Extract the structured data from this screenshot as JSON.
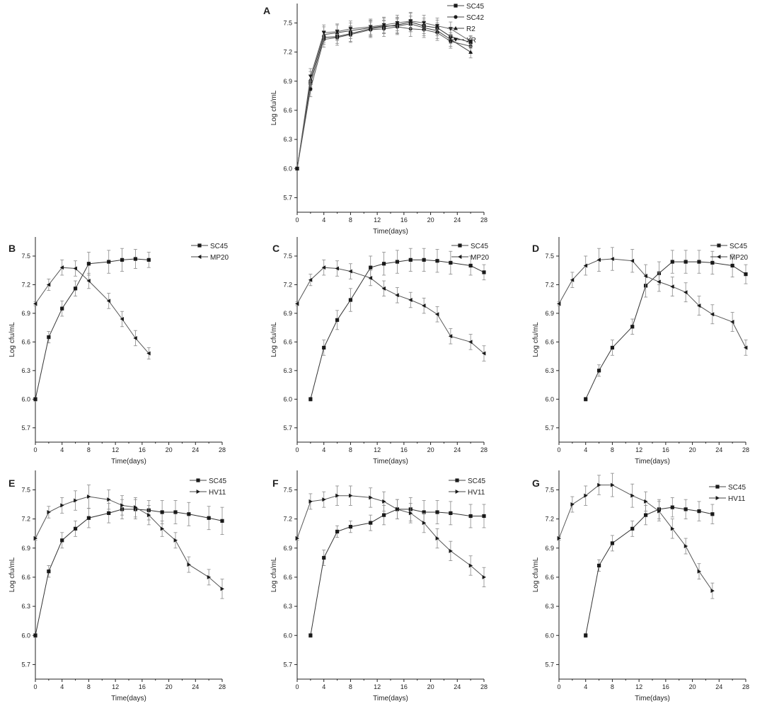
{
  "chart_data": [
    {
      "panel": "A",
      "type": "line",
      "xlabel": "Time(days)",
      "ylabel": "Log cfu/mL",
      "xlim": [
        0,
        28
      ],
      "ylim": [
        5.55,
        7.7
      ],
      "xticks": [
        0,
        4,
        8,
        12,
        16,
        20,
        24,
        28
      ],
      "yticks": [
        5.7,
        6.0,
        6.3,
        6.6,
        6.9,
        7.2,
        7.5
      ],
      "legend_position": "top-right",
      "series": [
        {
          "name": "SC45",
          "marker": "square",
          "x": [
            0,
            2,
            4,
            6,
            8,
            11,
            13,
            15,
            17,
            19,
            21,
            23,
            26
          ],
          "y": [
            6.0,
            6.88,
            7.35,
            7.36,
            7.39,
            7.44,
            7.46,
            7.48,
            7.51,
            7.47,
            7.45,
            7.36,
            7.3
          ],
          "err": [
            0.01,
            0.08,
            0.07,
            0.07,
            0.08,
            0.08,
            0.07,
            0.08,
            0.1,
            0.08,
            0.08,
            0.07,
            0.06
          ]
        },
        {
          "name": "SC42",
          "marker": "circle",
          "x": [
            0,
            2,
            4,
            6,
            8,
            11,
            13,
            15,
            17,
            19,
            21,
            23,
            26
          ],
          "y": [
            6.0,
            6.82,
            7.33,
            7.35,
            7.38,
            7.43,
            7.44,
            7.46,
            7.44,
            7.43,
            7.4,
            7.31,
            7.26
          ],
          "err": [
            0.01,
            0.08,
            0.08,
            0.08,
            0.08,
            0.08,
            0.08,
            0.08,
            0.08,
            0.08,
            0.08,
            0.07,
            0.06
          ]
        },
        {
          "name": "R2",
          "marker": "triangle-up",
          "x": [
            0,
            2,
            4,
            6,
            8,
            11,
            13,
            15,
            17,
            19,
            21,
            23,
            26
          ],
          "y": [
            6.0,
            6.92,
            7.38,
            7.4,
            7.42,
            7.45,
            7.47,
            7.47,
            7.49,
            7.45,
            7.42,
            7.33,
            7.2
          ],
          "err": [
            0.01,
            0.08,
            0.08,
            0.08,
            0.08,
            0.08,
            0.08,
            0.08,
            0.08,
            0.08,
            0.08,
            0.07,
            0.06
          ]
        },
        {
          "name": "XR",
          "marker": "triangle-down",
          "x": [
            0,
            2,
            4,
            6,
            8,
            11,
            13,
            15,
            17,
            19,
            21,
            23,
            26
          ],
          "y": [
            6.0,
            6.95,
            7.4,
            7.41,
            7.44,
            7.46,
            7.48,
            7.5,
            7.52,
            7.5,
            7.47,
            7.44,
            7.31
          ],
          "err": [
            0.01,
            0.08,
            0.08,
            0.08,
            0.08,
            0.08,
            0.08,
            0.08,
            0.08,
            0.08,
            0.08,
            0.07,
            0.06
          ]
        }
      ]
    },
    {
      "panel": "B",
      "type": "line",
      "xlabel": "Time(days)",
      "ylabel": "Log cfu/mL",
      "xlim": [
        0,
        28
      ],
      "ylim": [
        5.55,
        7.7
      ],
      "xticks": [
        0,
        4,
        8,
        12,
        16,
        20,
        24,
        28
      ],
      "yticks": [
        5.7,
        6.0,
        6.3,
        6.6,
        6.9,
        7.2,
        7.5
      ],
      "legend_position": "top-right",
      "series": [
        {
          "name": "SC45",
          "marker": "square",
          "x": [
            0,
            2,
            4,
            6,
            8,
            11,
            13,
            15,
            17
          ],
          "y": [
            6.0,
            6.65,
            6.95,
            7.16,
            7.42,
            7.44,
            7.46,
            7.47,
            7.46
          ],
          "err": [
            0.02,
            0.06,
            0.08,
            0.08,
            0.12,
            0.12,
            0.12,
            0.1,
            0.08
          ]
        },
        {
          "name": "MP20",
          "marker": "triangle-left",
          "x": [
            0,
            2,
            4,
            6,
            8,
            11,
            13,
            15,
            17
          ],
          "y": [
            7.0,
            7.2,
            7.38,
            7.37,
            7.24,
            7.03,
            6.84,
            6.64,
            6.48
          ],
          "err": [
            0.02,
            0.06,
            0.08,
            0.08,
            0.08,
            0.08,
            0.08,
            0.08,
            0.06
          ]
        }
      ]
    },
    {
      "panel": "C",
      "type": "line",
      "xlabel": "Time(days)",
      "ylabel": "Log cfu/mL",
      "xlim": [
        0,
        28
      ],
      "ylim": [
        5.55,
        7.7
      ],
      "xticks": [
        0,
        4,
        8,
        12,
        16,
        20,
        24,
        28
      ],
      "yticks": [
        5.7,
        6.0,
        6.3,
        6.6,
        6.9,
        7.2,
        7.5
      ],
      "legend_position": "top-right",
      "series": [
        {
          "name": "SC45",
          "marker": "square",
          "x": [
            2,
            4,
            6,
            8,
            11,
            13,
            15,
            17,
            19,
            21,
            23,
            26,
            28
          ],
          "y": [
            6.0,
            6.54,
            6.83,
            7.04,
            7.38,
            7.42,
            7.44,
            7.46,
            7.46,
            7.45,
            7.43,
            7.4,
            7.33
          ],
          "err": [
            0.02,
            0.08,
            0.1,
            0.12,
            0.12,
            0.12,
            0.12,
            0.12,
            0.12,
            0.12,
            0.12,
            0.1,
            0.08
          ]
        },
        {
          "name": "MP20",
          "marker": "triangle-left",
          "x": [
            0,
            2,
            4,
            6,
            8,
            11,
            13,
            15,
            17,
            19,
            21,
            23,
            26,
            28
          ],
          "y": [
            7.0,
            7.25,
            7.38,
            7.37,
            7.34,
            7.27,
            7.16,
            7.09,
            7.04,
            6.98,
            6.89,
            6.66,
            6.6,
            6.48
          ],
          "err": [
            0.02,
            0.06,
            0.08,
            0.08,
            0.08,
            0.08,
            0.08,
            0.08,
            0.08,
            0.08,
            0.08,
            0.08,
            0.08,
            0.08
          ]
        }
      ]
    },
    {
      "panel": "D",
      "type": "line",
      "xlabel": "Time(days)",
      "ylabel": "Log cfu/mL",
      "xlim": [
        0,
        28
      ],
      "ylim": [
        5.55,
        7.7
      ],
      "xticks": [
        0,
        4,
        8,
        12,
        16,
        20,
        24,
        28
      ],
      "yticks": [
        5.7,
        6.0,
        6.3,
        6.6,
        6.9,
        7.2,
        7.5
      ],
      "legend_position": "top-right",
      "series": [
        {
          "name": "SC45",
          "marker": "square",
          "x": [
            4,
            6,
            8,
            11,
            13,
            15,
            17,
            19,
            21,
            23,
            26,
            28
          ],
          "y": [
            6.0,
            6.3,
            6.54,
            6.76,
            7.19,
            7.32,
            7.44,
            7.44,
            7.44,
            7.43,
            7.4,
            7.31
          ],
          "err": [
            0.02,
            0.06,
            0.08,
            0.08,
            0.12,
            0.12,
            0.12,
            0.12,
            0.12,
            0.12,
            0.12,
            0.1
          ]
        },
        {
          "name": "MP20",
          "marker": "triangle-left",
          "x": [
            0,
            2,
            4,
            6,
            8,
            11,
            13,
            15,
            17,
            19,
            21,
            23,
            26,
            28
          ],
          "y": [
            7.0,
            7.25,
            7.4,
            7.46,
            7.47,
            7.45,
            7.29,
            7.23,
            7.18,
            7.12,
            6.98,
            6.89,
            6.81,
            6.54
          ],
          "err": [
            0.02,
            0.08,
            0.1,
            0.12,
            0.12,
            0.12,
            0.12,
            0.1,
            0.1,
            0.1,
            0.1,
            0.1,
            0.1,
            0.08
          ]
        }
      ]
    },
    {
      "panel": "E",
      "type": "line",
      "xlabel": "Time(days)",
      "ylabel": "Log cfu/mL",
      "xlim": [
        0,
        28
      ],
      "ylim": [
        5.55,
        7.7
      ],
      "xticks": [
        0,
        4,
        8,
        12,
        16,
        20,
        24,
        28
      ],
      "yticks": [
        5.7,
        6.0,
        6.3,
        6.6,
        6.9,
        7.2,
        7.5
      ],
      "legend_position": "top-right",
      "series": [
        {
          "name": "SC45",
          "marker": "square",
          "x": [
            0,
            2,
            4,
            6,
            8,
            11,
            13,
            15,
            17,
            19,
            21,
            23,
            26,
            28
          ],
          "y": [
            6.0,
            6.66,
            6.98,
            7.1,
            7.21,
            7.26,
            7.3,
            7.3,
            7.29,
            7.27,
            7.27,
            7.25,
            7.21,
            7.18
          ],
          "err": [
            0.02,
            0.06,
            0.08,
            0.08,
            0.1,
            0.1,
            0.1,
            0.1,
            0.1,
            0.12,
            0.12,
            0.12,
            0.12,
            0.14
          ]
        },
        {
          "name": "HV11",
          "marker": "triangle-right",
          "x": [
            0,
            2,
            4,
            6,
            8,
            11,
            13,
            15,
            17,
            19,
            21,
            23,
            26,
            28
          ],
          "y": [
            7.0,
            7.27,
            7.34,
            7.39,
            7.43,
            7.4,
            7.34,
            7.32,
            7.24,
            7.1,
            6.98,
            6.73,
            6.6,
            6.48
          ],
          "err": [
            0.02,
            0.06,
            0.08,
            0.1,
            0.12,
            0.1,
            0.1,
            0.1,
            0.1,
            0.08,
            0.08,
            0.08,
            0.08,
            0.1
          ]
        }
      ]
    },
    {
      "panel": "F",
      "type": "line",
      "xlabel": "Time(days)",
      "ylabel": "Log cfu/mL",
      "xlim": [
        0,
        28
      ],
      "ylim": [
        5.55,
        7.7
      ],
      "xticks": [
        0,
        4,
        8,
        12,
        16,
        20,
        24,
        28
      ],
      "yticks": [
        5.7,
        6.0,
        6.3,
        6.6,
        6.9,
        7.2,
        7.5
      ],
      "legend_position": "top-right",
      "series": [
        {
          "name": "SC45",
          "marker": "square",
          "x": [
            2,
            4,
            6,
            8,
            11,
            13,
            15,
            17,
            19,
            21,
            23,
            26,
            28
          ],
          "y": [
            6.0,
            6.8,
            7.07,
            7.12,
            7.16,
            7.24,
            7.3,
            7.3,
            7.27,
            7.27,
            7.26,
            7.23,
            7.23
          ],
          "err": [
            0.02,
            0.08,
            0.06,
            0.06,
            0.08,
            0.1,
            0.1,
            0.12,
            0.12,
            0.12,
            0.12,
            0.12,
            0.12
          ]
        },
        {
          "name": "HV11",
          "marker": "triangle-right",
          "x": [
            0,
            2,
            4,
            6,
            8,
            11,
            13,
            15,
            17,
            19,
            21,
            23,
            26,
            28
          ],
          "y": [
            7.0,
            7.38,
            7.4,
            7.44,
            7.44,
            7.42,
            7.38,
            7.3,
            7.26,
            7.16,
            7.0,
            6.87,
            6.72,
            6.6
          ],
          "err": [
            0.02,
            0.08,
            0.08,
            0.1,
            0.1,
            0.1,
            0.1,
            0.1,
            0.1,
            0.1,
            0.1,
            0.1,
            0.1,
            0.1
          ]
        }
      ]
    },
    {
      "panel": "G",
      "type": "line",
      "xlabel": "Time(days)",
      "ylabel": "Log cfu/mL",
      "xlim": [
        0,
        28
      ],
      "ylim": [
        5.55,
        7.7
      ],
      "xticks": [
        0,
        4,
        8,
        12,
        16,
        20,
        24,
        28
      ],
      "yticks": [
        5.7,
        6.0,
        6.3,
        6.6,
        6.9,
        7.2,
        7.5
      ],
      "legend_position": "top-right",
      "series": [
        {
          "name": "SC45",
          "marker": "square",
          "x": [
            4,
            6,
            8,
            11,
            13,
            15,
            17,
            19,
            21,
            23
          ],
          "y": [
            6.0,
            6.72,
            6.95,
            7.1,
            7.24,
            7.3,
            7.32,
            7.3,
            7.28,
            7.25
          ],
          "err": [
            0.02,
            0.06,
            0.08,
            0.08,
            0.1,
            0.1,
            0.1,
            0.1,
            0.1,
            0.1
          ]
        },
        {
          "name": "HV11",
          "marker": "triangle-right",
          "x": [
            0,
            2,
            4,
            6,
            8,
            11,
            13,
            15,
            17,
            19,
            21,
            23
          ],
          "y": [
            7.0,
            7.35,
            7.44,
            7.55,
            7.55,
            7.44,
            7.38,
            7.28,
            7.1,
            6.92,
            6.66,
            6.46
          ],
          "err": [
            0.02,
            0.08,
            0.1,
            0.1,
            0.12,
            0.12,
            0.1,
            0.1,
            0.1,
            0.08,
            0.08,
            0.08
          ]
        }
      ]
    }
  ]
}
